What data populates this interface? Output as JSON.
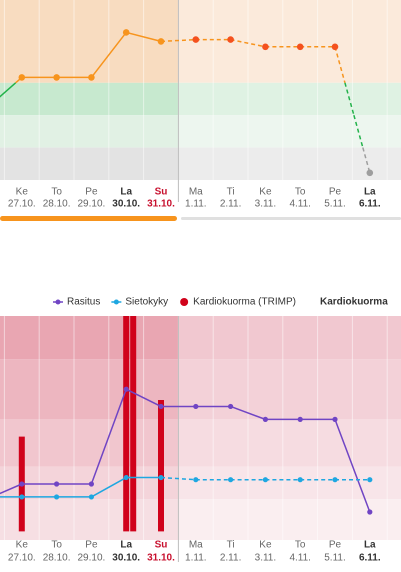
{
  "chart_data": [
    {
      "type": "zone-line",
      "weekdays": [
        null,
        "Ke",
        "To",
        "Pe",
        "La",
        "Su",
        "Ma",
        "Ti",
        "Ke",
        "To",
        "Pe",
        "La"
      ],
      "dates": [
        null,
        "27.10.",
        "28.10.",
        "29.10.",
        "30.10.",
        "31.10.",
        "1.11.",
        "2.11.",
        "3.11.",
        "4.11.",
        "5.11.",
        "6.11."
      ],
      "label_colors": [
        "#666",
        "#666",
        "#666",
        "#666",
        "#333",
        "#c8102e",
        "#666",
        "#666",
        "#666",
        "#666",
        "#666",
        "#333"
      ],
      "bold": [
        false,
        false,
        false,
        false,
        true,
        true,
        false,
        false,
        false,
        false,
        false,
        true
      ],
      "today_index": 5,
      "values": [
        40,
        57,
        57,
        57,
        82,
        77,
        78,
        78,
        74,
        74,
        74,
        4
      ],
      "future_marker_color": "#f4511e",
      "ylim": [
        0,
        100
      ],
      "zones": [
        {
          "from": 54,
          "to": 100,
          "past": "#f8dcc0",
          "future": "#fbeadb",
          "line": "#f7941d"
        },
        {
          "from": 36,
          "to": 54,
          "past": "#c7e9cf",
          "future": "#dff2e3",
          "line": "#22b24a"
        },
        {
          "from": 18,
          "to": 36,
          "past": "#e1f1e4",
          "future": "#edf6ef",
          "line": "#22b24a"
        },
        {
          "from": 0,
          "to": 18,
          "past": "#e3e3e3",
          "future": "#ececec",
          "line": "#9e9e9e"
        }
      ]
    },
    {
      "type": "combo",
      "heading": "Kardiokuorma",
      "weekdays": [
        null,
        "Ke",
        "To",
        "Pe",
        "La",
        "Su",
        "Ma",
        "Ti",
        "Ke",
        "To",
        "Pe",
        "La"
      ],
      "dates": [
        null,
        "27.10.",
        "28.10.",
        "29.10.",
        "30.10.",
        "31.10.",
        "1.11.",
        "2.11.",
        "3.11.",
        "4.11.",
        "5.11.",
        "6.11."
      ],
      "label_colors": [
        "#666",
        "#666",
        "#666",
        "#666",
        "#333",
        "#c8102e",
        "#666",
        "#666",
        "#666",
        "#666",
        "#666",
        "#333"
      ],
      "bold": [
        false,
        false,
        false,
        false,
        true,
        true,
        false,
        false,
        false,
        false,
        false,
        true
      ],
      "today_index": 5,
      "ylim": [
        -4,
        100
      ],
      "zones": [
        {
          "from": 80,
          "to": 100,
          "past": "#e9a6b2",
          "future": "#f1c8d0"
        },
        {
          "from": 52,
          "to": 80,
          "past": "#edb6c0",
          "future": "#f3d1d8"
        },
        {
          "from": 30,
          "to": 52,
          "past": "#f1c6ce",
          "future": "#f6dce1"
        },
        {
          "from": 15,
          "to": 30,
          "past": "#f4d4da",
          "future": "#f8e5e9"
        },
        {
          "from": -4,
          "to": 15,
          "past": "#f6dfe3",
          "future": "#faeef0"
        }
      ],
      "series": [
        {
          "name": "Rasitus",
          "color": "#7045c4",
          "dashed_future": false,
          "values": [
            15,
            22,
            22,
            22,
            66,
            58,
            58,
            58,
            52,
            52,
            52,
            9
          ]
        },
        {
          "name": "Sietokyky",
          "color": "#1ea7e1",
          "dashed_future": true,
          "values": [
            16,
            16,
            16,
            16,
            25,
            25,
            24,
            24,
            24,
            24,
            24,
            24
          ]
        },
        {
          "name": "Kardiokuorma (TRIMP)",
          "color": "#d0021b",
          "type": "bar",
          "values": [
            [],
            [
              44
            ],
            [],
            [],
            [
              100,
              100
            ],
            [
              61
            ],
            [],
            [],
            [],
            [],
            [],
            []
          ]
        }
      ]
    }
  ]
}
